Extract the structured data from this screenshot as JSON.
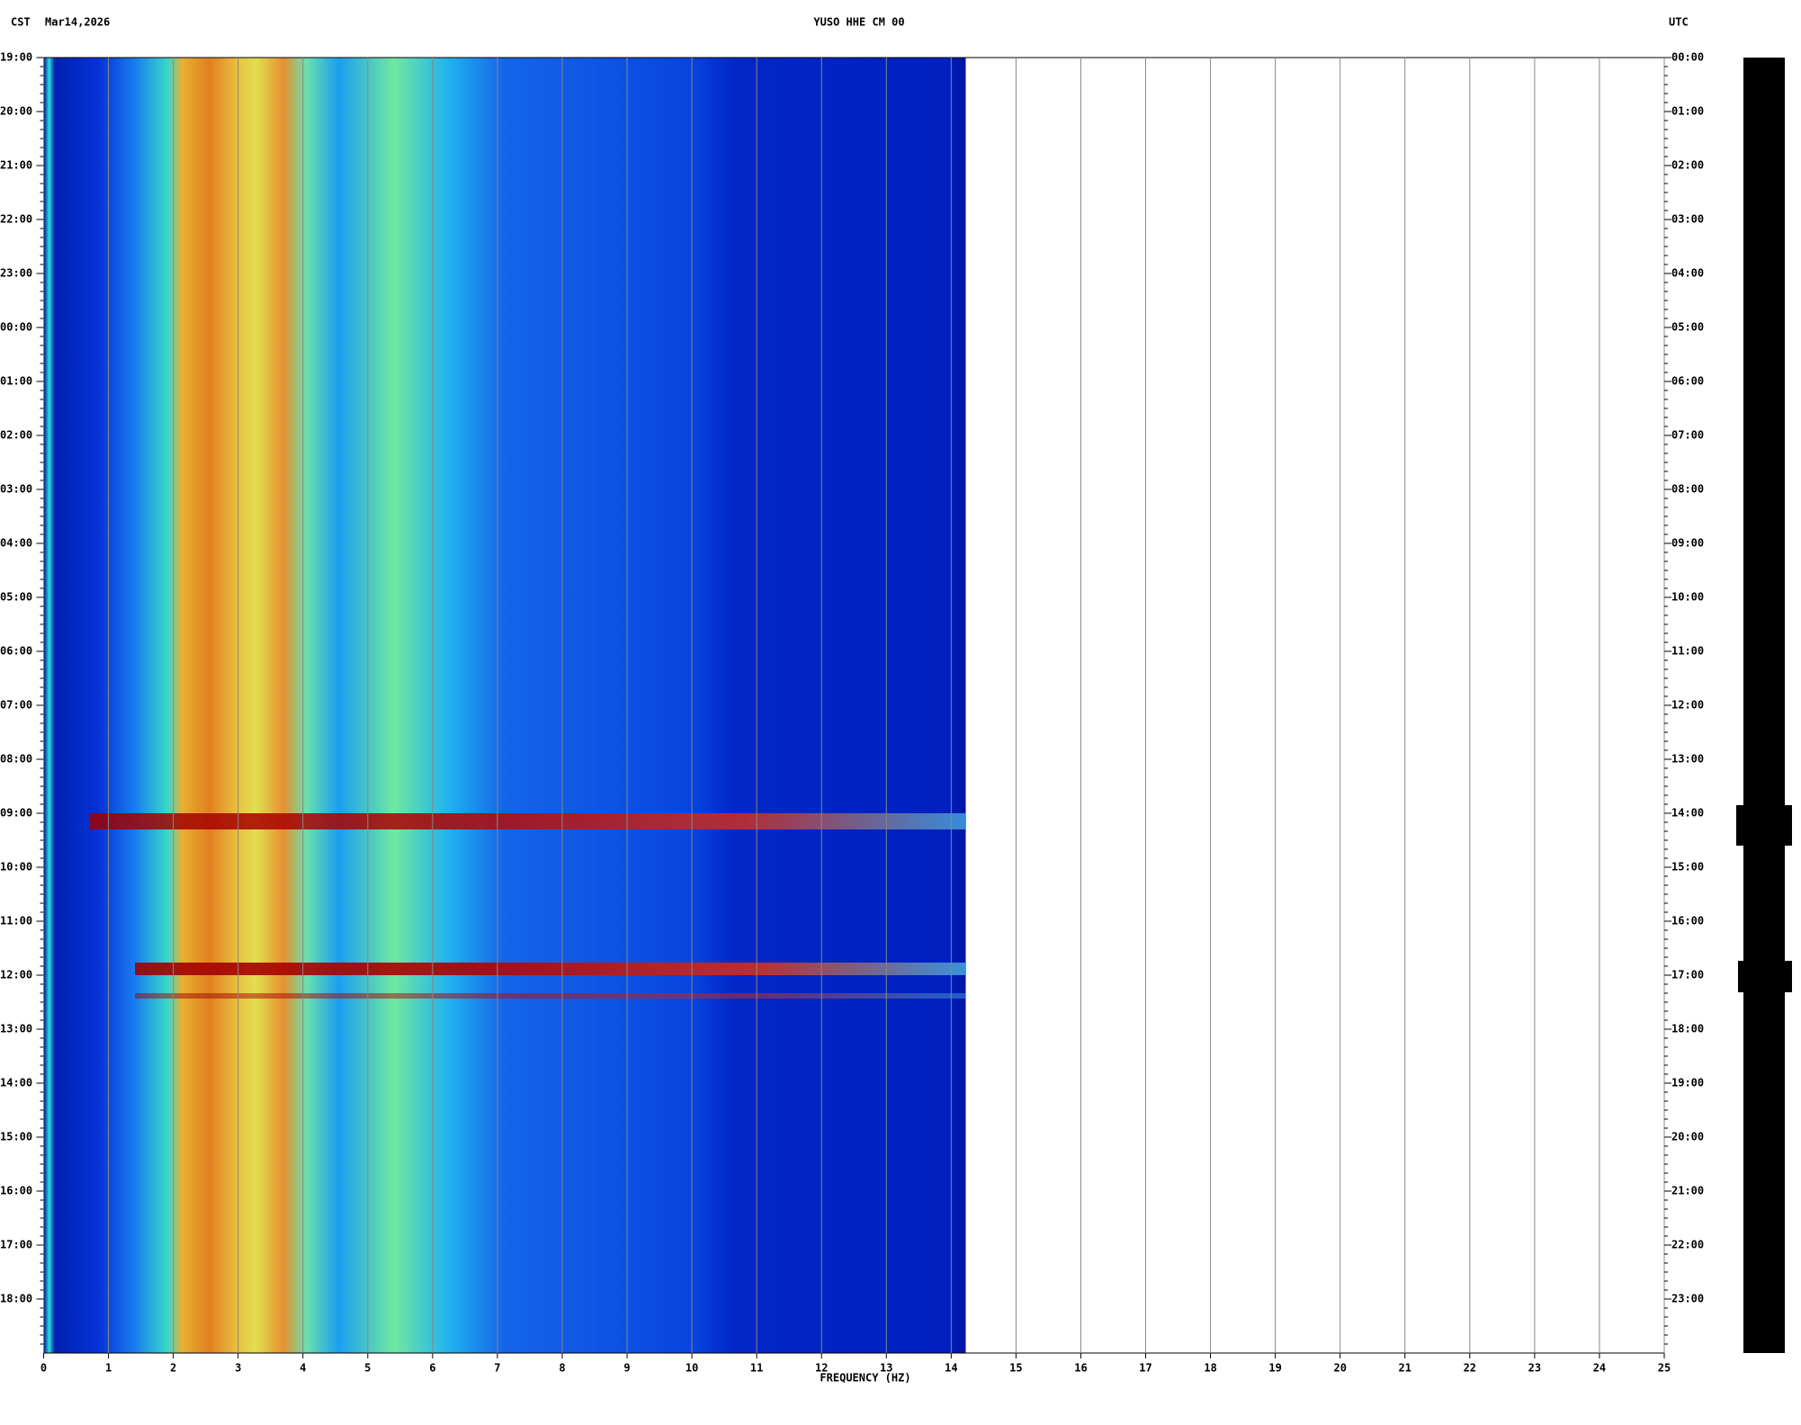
{
  "chart_data": {
    "type": "spectrogram",
    "title": "YUSO HHE CM 00",
    "left_zone": "CST",
    "date": "Mar14,2026",
    "right_zone": "UTC",
    "x_label": "FREQUENCY (HZ)",
    "xlim": [
      0,
      25
    ],
    "xticks": [
      0,
      1,
      2,
      3,
      4,
      5,
      6,
      7,
      8,
      9,
      10,
      11,
      12,
      13,
      14,
      15,
      16,
      17,
      18,
      19,
      20,
      21,
      22,
      23,
      24,
      25
    ],
    "grid": true,
    "left_times": [
      "19:00",
      "20:00",
      "21:00",
      "22:00",
      "23:00",
      "00:00",
      "01:00",
      "02:00",
      "03:00",
      "04:00",
      "05:00",
      "06:00",
      "07:00",
      "08:00",
      "09:00",
      "10:00",
      "11:00",
      "12:00",
      "13:00",
      "14:00",
      "15:00",
      "16:00",
      "17:00",
      "18:00"
    ],
    "right_times": [
      "00:00",
      "01:00",
      "02:00",
      "03:00",
      "04:00",
      "05:00",
      "06:00",
      "07:00",
      "08:00",
      "09:00",
      "10:00",
      "11:00",
      "12:00",
      "13:00",
      "14:00",
      "15:00",
      "16:00",
      "17:00",
      "18:00",
      "19:00",
      "20:00",
      "21:00",
      "22:00",
      "23:00"
    ]
  }
}
